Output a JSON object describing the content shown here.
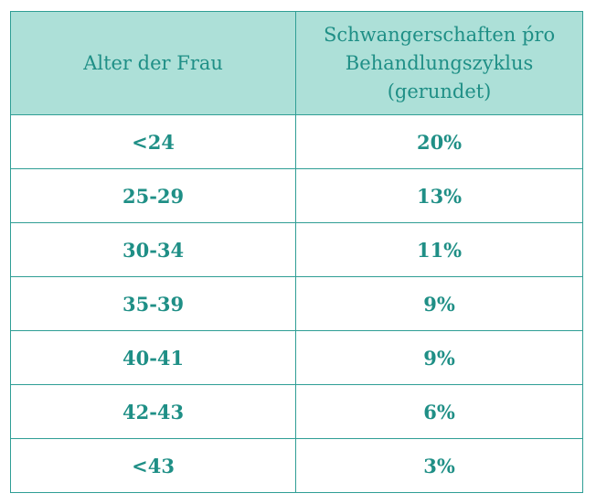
{
  "table": {
    "headers": {
      "age": "Alter der Frau",
      "rate": "Schwangerschaften ṕro Behandlungszyklus (gerundet)"
    },
    "rows": [
      {
        "age": "<24",
        "rate": "20%"
      },
      {
        "age": "25-29",
        "rate": "13%"
      },
      {
        "age": "30-34",
        "rate": "11%"
      },
      {
        "age": "35-39",
        "rate": "9%"
      },
      {
        "age": "40-41",
        "rate": "9%"
      },
      {
        "age": "42-43",
        "rate": "6%"
      },
      {
        "age": "<43",
        "rate": "3%"
      }
    ]
  }
}
